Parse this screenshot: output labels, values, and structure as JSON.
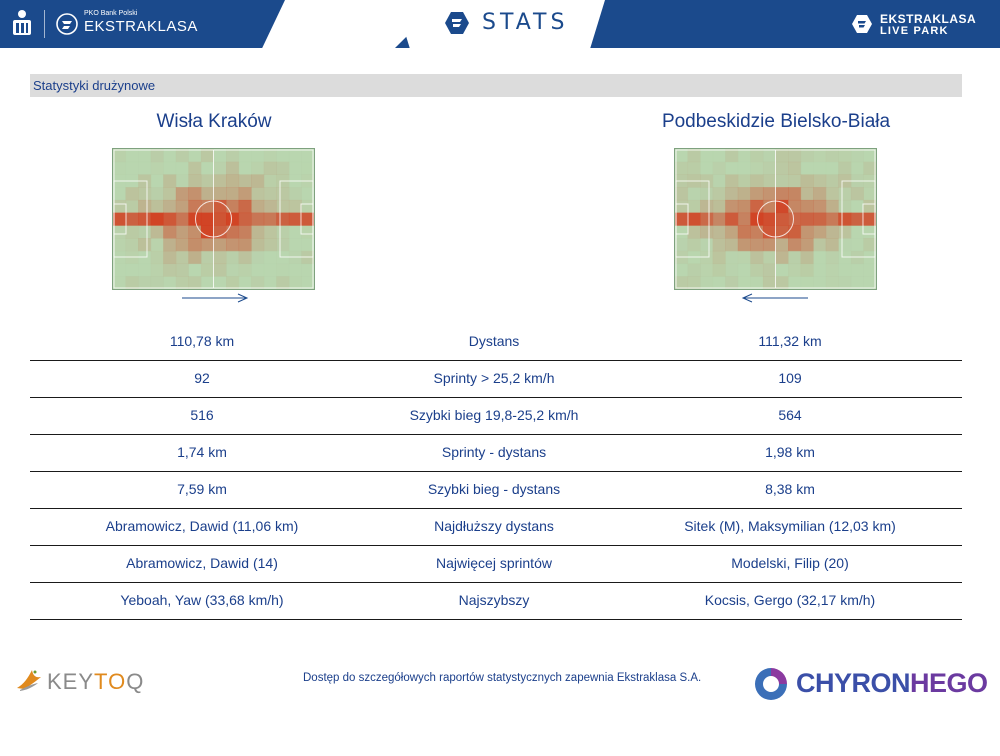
{
  "header": {
    "bank_small": "PKO Bank Polski",
    "league_name": "EKSTRAKLASA",
    "app_title": "STATS",
    "live_line1": "EKSTRAKLASA",
    "live_line2": "LIVE PARK",
    "brand_color": "#1b4a8c"
  },
  "section": {
    "title": "Statystyki drużynowe"
  },
  "teams": {
    "home": {
      "name": "Wisła Kraków",
      "attack_direction": "right"
    },
    "away": {
      "name": "Podbeskidzie Bielsko-Biała",
      "attack_direction": "left"
    }
  },
  "stats": [
    {
      "home": "110,78 km",
      "label": "Dystans",
      "away": "111,32 km"
    },
    {
      "home": "92",
      "label": "Sprinty > 25,2 km/h",
      "away": "109"
    },
    {
      "home": "516",
      "label": "Szybki bieg 19,8-25,2 km/h",
      "away": "564"
    },
    {
      "home": "1,74 km",
      "label": "Sprinty - dystans",
      "away": "1,98 km"
    },
    {
      "home": "7,59 km",
      "label": "Szybki bieg - dystans",
      "away": "8,38 km"
    },
    {
      "home": "Abramowicz, Dawid (11,06 km)",
      "label": "Najdłuższy dystans",
      "away": "Sitek (M), Maksymilian (12,03 km)"
    },
    {
      "home": "Abramowicz, Dawid (14)",
      "label": "Najwięcej sprintów",
      "away": "Modelski, Filip (20)"
    },
    {
      "home": "Yeboah, Yaw (33,68 km/h)",
      "label": "Najszybszy",
      "away": "Kocsis, Gergo (32,17 km/h)"
    }
  ],
  "footer": {
    "keytoq_a": "KEY",
    "keytoq_b": "TO",
    "keytoq_c": "Q",
    "note": "Dostęp do szczegółowych raportów statystycznych zapewnia Ekstraklasa S.A.",
    "chyron_a": "CHYRON",
    "chyron_b": "HEGO"
  },
  "icons": {
    "pko": "pko-bank-icon",
    "league": "ekstraklasa-badge-icon",
    "stats": "stats-logo-icon",
    "live": "live-park-icon",
    "keytoq": "keytoq-bird-icon",
    "chyron": "chyronhego-swirl-icon"
  }
}
